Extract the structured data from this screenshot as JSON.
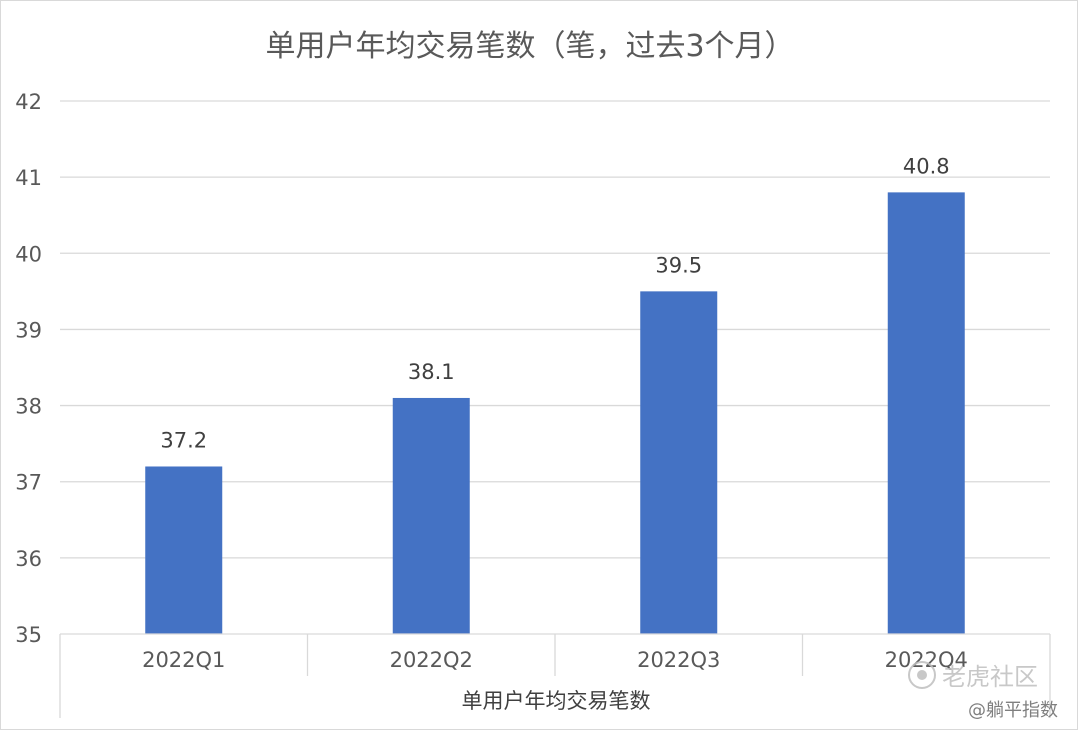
{
  "chart_data": {
    "type": "bar",
    "title": "单用户年均交易笔数（笔，过去3个月）",
    "categories": [
      "2022Q1",
      "2022Q2",
      "2022Q3",
      "2022Q4"
    ],
    "series": [
      {
        "name": "单用户年均交易笔数",
        "values": [
          37.2,
          38.1,
          39.5,
          40.8
        ],
        "color": "#4472C4"
      }
    ],
    "data_labels": [
      "37.2",
      "38.1",
      "39.5",
      "40.8"
    ],
    "xlabel": "单用户年均交易笔数",
    "ylabel": "",
    "ylim": [
      35,
      42
    ],
    "yticks": [
      35,
      36,
      37,
      38,
      39,
      40,
      41,
      42
    ],
    "grid": true,
    "legend": "none"
  },
  "watermark": {
    "logo_text": "老虎社区",
    "sub_text": "@躺平指数"
  }
}
